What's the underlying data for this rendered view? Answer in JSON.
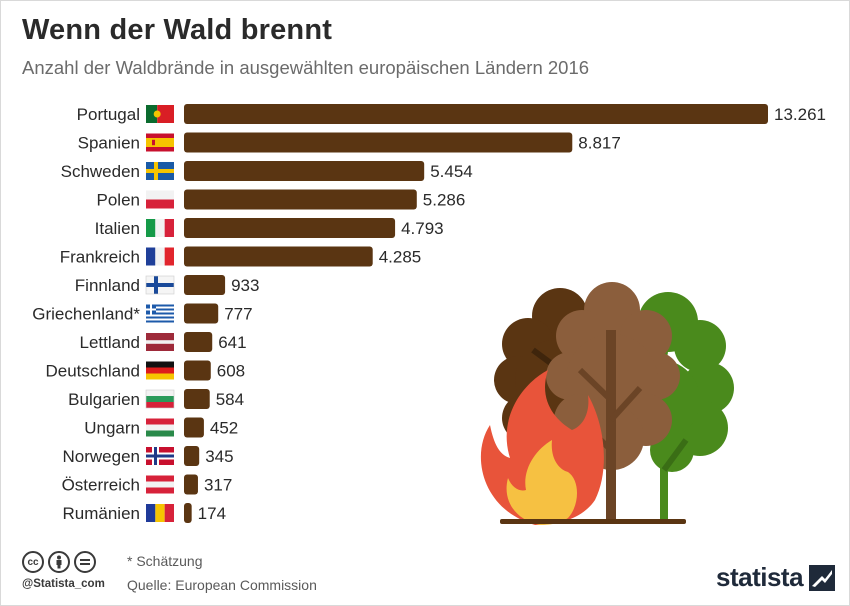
{
  "title": "Wenn der Wald brennt",
  "subtitle": "Anzahl der Waldbrände in ausgewählten europäischen Ländern 2016",
  "colors": {
    "bar": "#5a3512",
    "text": "#2a2a2a"
  },
  "chart_data": {
    "type": "bar",
    "orientation": "horizontal",
    "title": "Wenn der Wald brennt",
    "subtitle": "Anzahl der Waldbrände in ausgewählten europäischen Ländern 2016",
    "categories": [
      "Portugal",
      "Spanien",
      "Schweden",
      "Polen",
      "Italien",
      "Frankreich",
      "Finnland",
      "Griechenland*",
      "Lettland",
      "Deutschland",
      "Bulgarien",
      "Ungarn",
      "Norwegen",
      "Österreich",
      "Rumänien"
    ],
    "values": [
      13261,
      8817,
      5454,
      5286,
      4793,
      4285,
      933,
      777,
      641,
      608,
      584,
      452,
      345,
      317,
      174
    ],
    "value_labels": [
      "13.261",
      "8.817",
      "5.454",
      "5.286",
      "4.793",
      "4.285",
      "933",
      "777",
      "641",
      "608",
      "584",
      "452",
      "345",
      "317",
      "174"
    ],
    "flags": [
      "portugal",
      "spain",
      "sweden",
      "poland",
      "italy",
      "france",
      "finland",
      "greece",
      "latvia",
      "germany",
      "bulgaria",
      "hungary",
      "norway",
      "austria",
      "romania"
    ],
    "xlim": [
      0,
      13261
    ],
    "grid": false,
    "legend": "none"
  },
  "footer": {
    "cc_icons": [
      "cc",
      "by",
      "nd"
    ],
    "handle": "@Statista_com",
    "note": "* Schätzung",
    "source": "Quelle: European Commission",
    "brand": "statista"
  }
}
